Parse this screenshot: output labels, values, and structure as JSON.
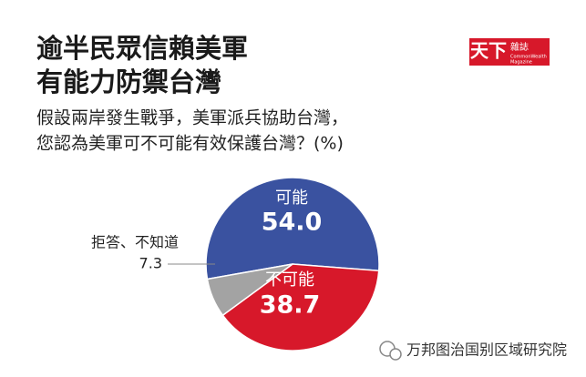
{
  "chart_data": {
    "type": "pie",
    "title": [
      "逾半民眾信賴美軍",
      "有能力防禦台灣"
    ],
    "subtitle": [
      "假設兩岸發生戰爭，美軍派兵協助台灣，",
      "您認為美軍可不可能有效保護台灣？(%)"
    ],
    "categories": [
      "可能",
      "不可能",
      "拒答、不知道"
    ],
    "values": [
      54.0,
      38.7,
      7.3
    ],
    "value_labels": [
      "54.0",
      "38.7",
      "7.3"
    ],
    "colors": [
      "#3a52a0",
      "#d7182a",
      "#a3a3a3"
    ]
  },
  "logo": {
    "name": "天下",
    "sub": "雜誌",
    "english": [
      "CommonWealth",
      "Magazine"
    ]
  },
  "watermark": "万邦图治国别区域研究院"
}
